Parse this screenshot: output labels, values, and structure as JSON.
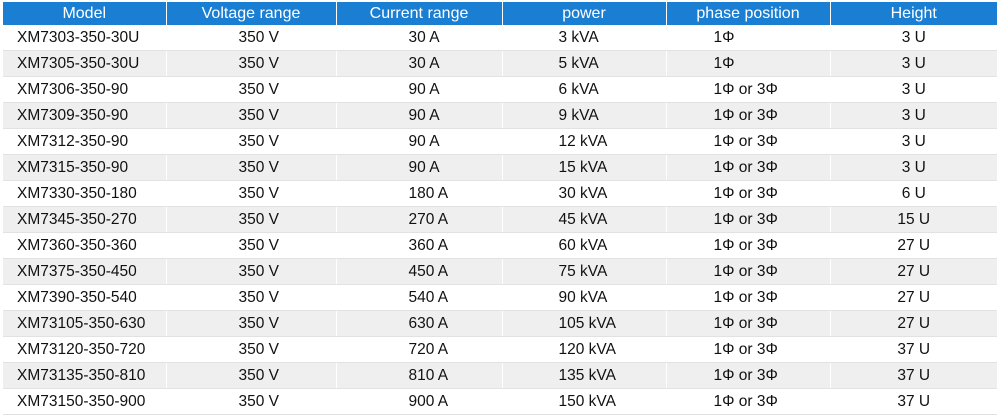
{
  "table": {
    "headers": [
      "Model",
      "Voltage range",
      "Current range",
      "power",
      "phase position",
      "Height"
    ],
    "rows": [
      [
        "XM7303-350-30U",
        "350 V",
        "30 A",
        "3 kVA",
        "1Φ",
        "3 U"
      ],
      [
        "XM7305-350-30U",
        "350 V",
        "30 A",
        "5 kVA",
        "1Φ",
        "3 U"
      ],
      [
        "XM7306-350-90",
        "350 V",
        "90 A",
        "6 kVA",
        "1Φ or 3Φ",
        "3 U"
      ],
      [
        "XM7309-350-90",
        "350 V",
        "90 A",
        "9 kVA",
        "1Φ or 3Φ",
        "3 U"
      ],
      [
        "XM7312-350-90",
        "350 V",
        "90 A",
        "12 kVA",
        "1Φ or 3Φ",
        "3 U"
      ],
      [
        "XM7315-350-90",
        "350 V",
        "90 A",
        "15 kVA",
        "1Φ or 3Φ",
        "3 U"
      ],
      [
        "XM7330-350-180",
        "350 V",
        "180 A",
        "30 kVA",
        "1Φ or 3Φ",
        "6 U"
      ],
      [
        "XM7345-350-270",
        "350 V",
        "270 A",
        "45 kVA",
        "1Φ or 3Φ",
        "15 U"
      ],
      [
        "XM7360-350-360",
        "350 V",
        "360 A",
        "60 kVA",
        "1Φ or 3Φ",
        "27 U"
      ],
      [
        "XM7375-350-450",
        "350 V",
        "450 A",
        "75 kVA",
        "1Φ or 3Φ",
        "27 U"
      ],
      [
        "XM7390-350-540",
        "350 V",
        "540 A",
        "90 kVA",
        "1Φ or 3Φ",
        "27 U"
      ],
      [
        "XM73105-350-630",
        "350 V",
        "630 A",
        "105 kVA",
        "1Φ or 3Φ",
        "27 U"
      ],
      [
        "XM73120-350-720",
        "350 V",
        "720 A",
        "120 kVA",
        "1Φ or 3Φ",
        "37 U"
      ],
      [
        "XM73135-350-810",
        "350 V",
        "810 A",
        "135 kVA",
        "1Φ or 3Φ",
        "37 U"
      ],
      [
        "XM73150-350-900",
        "350 V",
        "900 A",
        "150 kVA",
        "1Φ or 3Φ",
        "37 U"
      ]
    ]
  },
  "colors": {
    "header_bg": "#1a7fd2",
    "header_text": "#ffffff",
    "row_alt_bg": "#efefef"
  }
}
